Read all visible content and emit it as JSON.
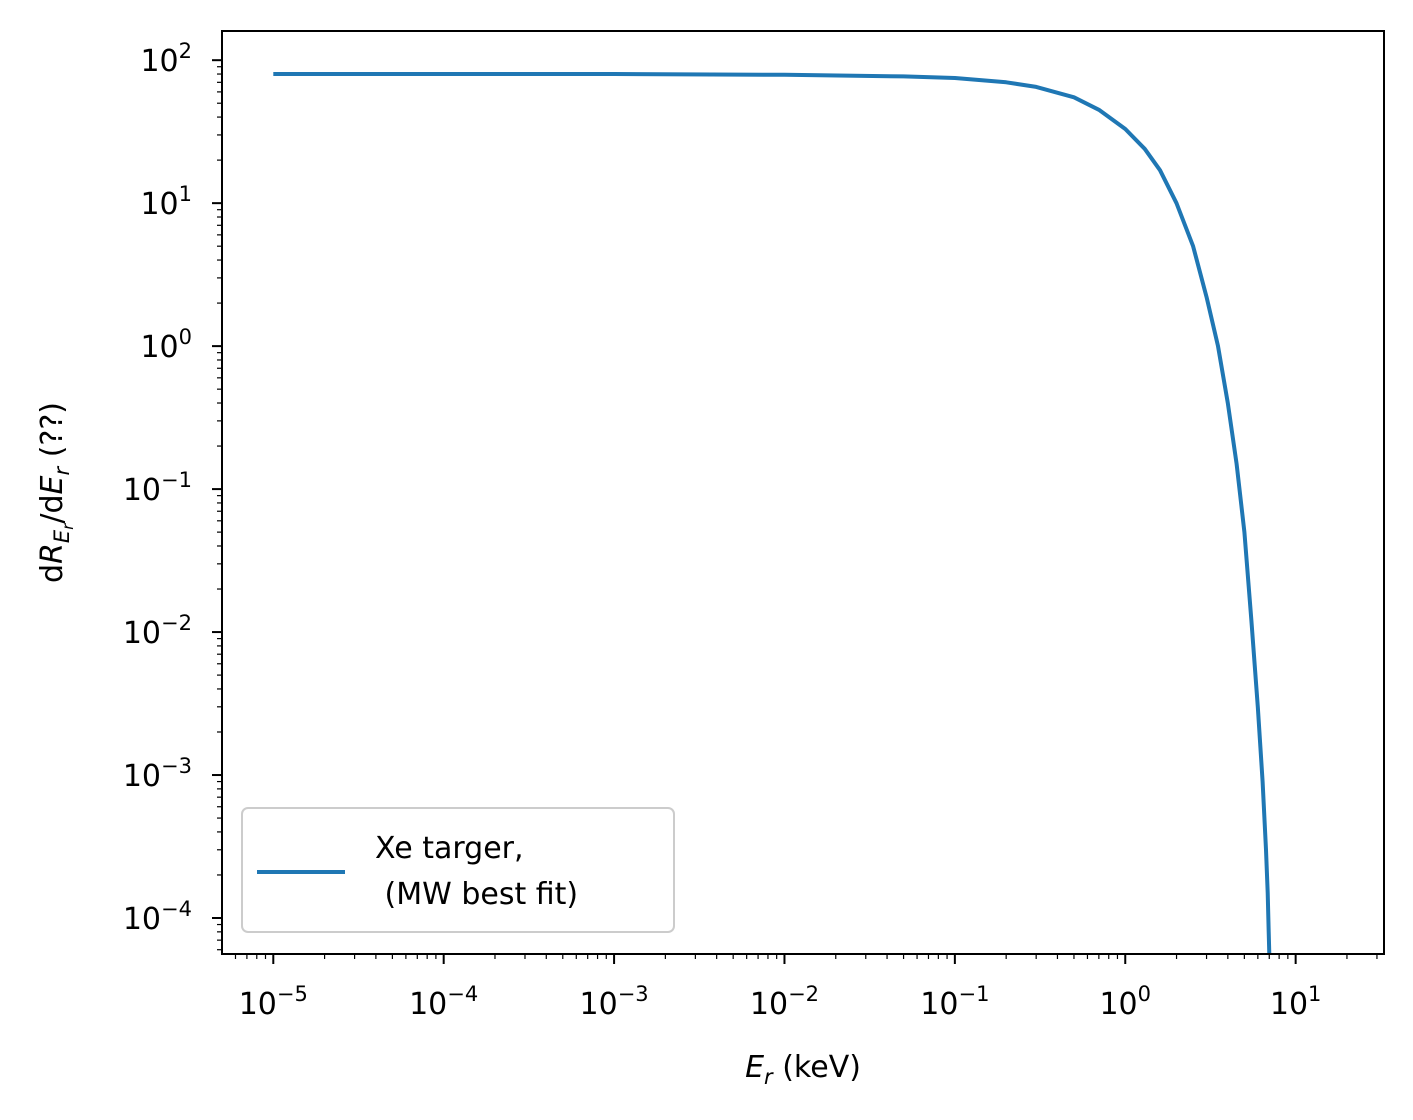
{
  "chart_data": {
    "type": "line",
    "title": "",
    "xlabel": {
      "var": "E",
      "sub": "r",
      "rest": " (keV)"
    },
    "ylabel": {
      "pre": "d",
      "var": "R",
      "sub": "E",
      "subsub": "r",
      "mid": "/d",
      "var2": "E",
      "sub2": "r",
      "rest": " (??)"
    },
    "xscale": "log",
    "yscale": "log",
    "xlim": [
      5e-06,
      33
    ],
    "ylim": [
      5.6e-05,
      160
    ],
    "grid": false,
    "x_ticks": [
      {
        "base": "10",
        "exp": "−5",
        "value": 1e-05
      },
      {
        "base": "10",
        "exp": "−4",
        "value": 0.0001
      },
      {
        "base": "10",
        "exp": "−3",
        "value": 0.001
      },
      {
        "base": "10",
        "exp": "−2",
        "value": 0.01
      },
      {
        "base": "10",
        "exp": "−1",
        "value": 0.1
      },
      {
        "base": "10",
        "exp": "0",
        "value": 1
      },
      {
        "base": "10",
        "exp": "1",
        "value": 10
      }
    ],
    "y_ticks": [
      {
        "base": "10",
        "exp": "2",
        "value": 100
      },
      {
        "base": "10",
        "exp": "1",
        "value": 10
      },
      {
        "base": "10",
        "exp": "0",
        "value": 1
      },
      {
        "base": "10",
        "exp": "−1",
        "value": 0.1
      },
      {
        "base": "10",
        "exp": "−2",
        "value": 0.01
      },
      {
        "base": "10",
        "exp": "−3",
        "value": 0.001
      },
      {
        "base": "10",
        "exp": "−4",
        "value": 0.0001
      }
    ],
    "legend": {
      "placement": "lower-left",
      "entries": [
        {
          "line1": "Xe targer,",
          "line2": " (MW best fit)"
        }
      ]
    },
    "series": [
      {
        "name": "Xe targer,\n (MW best fit)",
        "color": "#1f77b4",
        "x": [
          1e-05,
          0.0001,
          0.001,
          0.01,
          0.05,
          0.1,
          0.2,
          0.3,
          0.5,
          0.7,
          1.0,
          1.3,
          1.6,
          2.0,
          2.5,
          3.0,
          3.5,
          4.0,
          4.5,
          5.0,
          5.5,
          6.0,
          6.4,
          6.7,
          6.85,
          6.95,
          7.0
        ],
        "y": [
          80,
          80,
          80,
          79,
          77,
          75,
          70,
          65,
          55,
          45,
          33,
          24,
          17,
          10,
          5,
          2.2,
          1.0,
          0.4,
          0.15,
          0.05,
          0.012,
          0.003,
          0.0009,
          0.0003,
          0.00015,
          8e-05,
          5e-05
        ]
      }
    ]
  }
}
